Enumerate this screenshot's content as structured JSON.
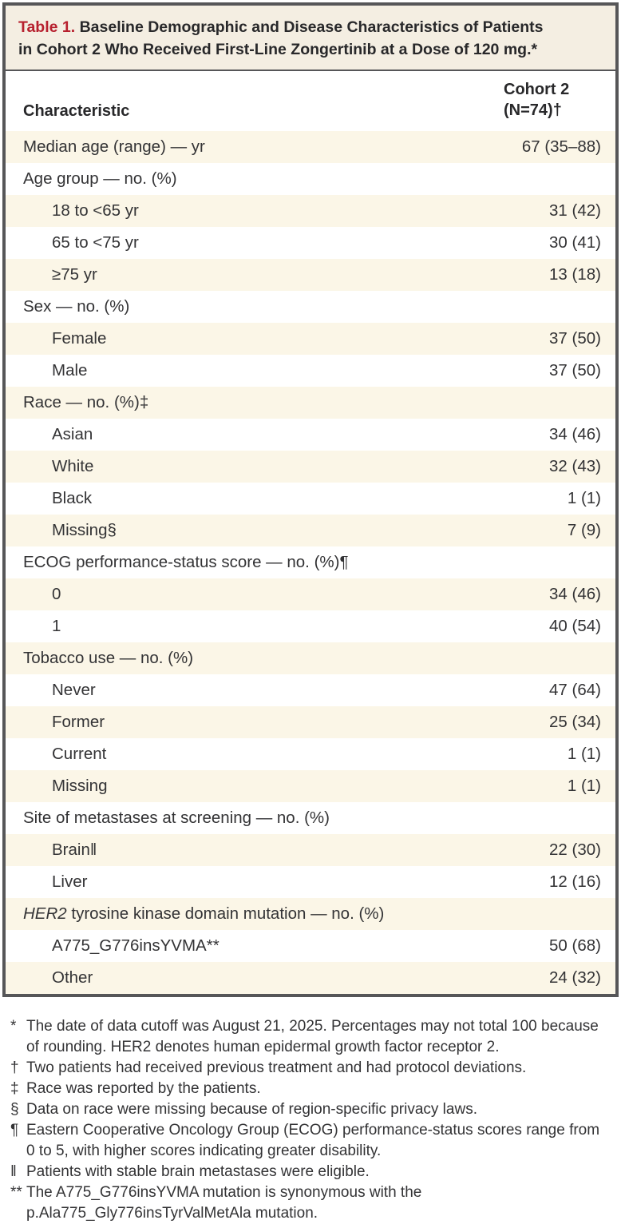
{
  "colors": {
    "accent_red": "#b7202e",
    "title_band_bg": "#f4eee2",
    "row_stripe_bg": "#fbf6e7",
    "border_gray": "#565658",
    "text": "#333335"
  },
  "table": {
    "title": {
      "label": "Table 1.",
      "line1": "Baseline Demographic and Disease Characteristics of Patients",
      "line2": "in Cohort 2 Who Received First-Line Zongertinib at a Dose of 120 mg.*"
    },
    "header": {
      "characteristic": "Characteristic",
      "cohort_line1": "Cohort 2",
      "cohort_line2": "(N=74)†"
    },
    "rows": [
      {
        "label": "Median age (range) — yr",
        "value": "67 (35–88)",
        "indent": false
      },
      {
        "label": "Age group — no. (%)",
        "value": "",
        "indent": false
      },
      {
        "label": "18 to <65 yr",
        "value": "31 (42)",
        "indent": true
      },
      {
        "label": "65 to <75 yr",
        "value": "30 (41)",
        "indent": true
      },
      {
        "label": "≥75 yr",
        "value": "13 (18)",
        "indent": true
      },
      {
        "label": "Sex — no. (%)",
        "value": "",
        "indent": false
      },
      {
        "label": "Female",
        "value": "37 (50)",
        "indent": true
      },
      {
        "label": "Male",
        "value": "37 (50)",
        "indent": true
      },
      {
        "label": "Race — no. (%)‡",
        "value": "",
        "indent": false
      },
      {
        "label": "Asian",
        "value": "34 (46)",
        "indent": true
      },
      {
        "label": "White",
        "value": "32 (43)",
        "indent": true
      },
      {
        "label": "Black",
        "value": "1 (1)",
        "indent": true
      },
      {
        "label": "Missing§",
        "value": "7 (9)",
        "indent": true
      },
      {
        "label": "ECOG performance-status score — no. (%)¶",
        "value": "",
        "indent": false
      },
      {
        "label": "0",
        "value": "34 (46)",
        "indent": true
      },
      {
        "label": "1",
        "value": "40 (54)",
        "indent": true
      },
      {
        "label": "Tobacco use — no. (%)",
        "value": "",
        "indent": false
      },
      {
        "label": "Never",
        "value": "47 (64)",
        "indent": true
      },
      {
        "label": "Former",
        "value": "25 (34)",
        "indent": true
      },
      {
        "label": "Current",
        "value": "1 (1)",
        "indent": true
      },
      {
        "label": "Missing",
        "value": "1 (1)",
        "indent": true
      },
      {
        "label": "Site of metastases at screening — no. (%)",
        "value": "",
        "indent": false
      },
      {
        "label": "Brain‖",
        "value": "22 (30)",
        "indent": true
      },
      {
        "label": "Liver",
        "value": "12 (16)",
        "indent": true
      },
      {
        "label_italic": "HER2",
        "label": " tyrosine kinase domain mutation — no. (%)",
        "value": "",
        "indent": false
      },
      {
        "label": "A775_G776insYVMA**",
        "value": "50 (68)",
        "indent": true
      },
      {
        "label": "Other",
        "value": "24 (32)",
        "indent": true
      }
    ],
    "footnotes": [
      {
        "marker": "*",
        "text": "The date of data cutoff was August 21, 2025. Percentages may not total 100 because of rounding. HER2 denotes human epidermal growth factor receptor 2."
      },
      {
        "marker": "†",
        "text": "Two patients had received previous treatment and had protocol deviations."
      },
      {
        "marker": "‡",
        "text": "Race was reported by the patients."
      },
      {
        "marker": "§",
        "text": "Data on race were missing because of region-specific privacy laws."
      },
      {
        "marker": "¶",
        "text": "Eastern Cooperative Oncology Group (ECOG) performance-status scores range from 0 to 5, with higher scores indicating greater disability."
      },
      {
        "marker": "‖",
        "text": "Patients with stable brain metastases were eligible."
      },
      {
        "marker": "**",
        "text": "The A775_G776insYVMA mutation is synonymous with the p.Ala775_Gly776insTyrValMetAla mutation."
      }
    ]
  }
}
